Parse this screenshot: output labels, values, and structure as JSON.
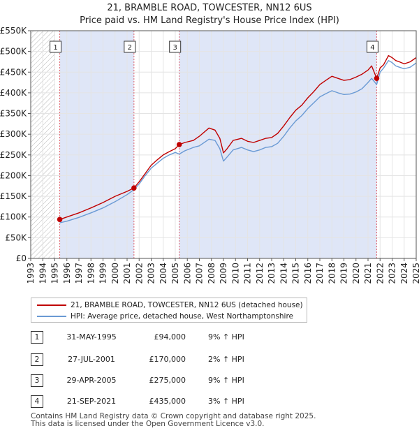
{
  "title_line1": "21, BRAMBLE ROAD, TOWCESTER, NN12 6US",
  "title_line2": "Price paid vs. HM Land Registry's House Price Index (HPI)",
  "chart_data": {
    "type": "line",
    "title": "21, BRAMBLE ROAD, TOWCESTER, NN12 6US — Price paid vs. HM Land Registry's House Price Index (HPI)",
    "xlabel": "",
    "ylabel": "",
    "xlim": [
      1993,
      2025
    ],
    "ylim": [
      0,
      550000
    ],
    "x_ticks": [
      "1993",
      "1994",
      "1995",
      "1996",
      "1997",
      "1998",
      "1999",
      "2000",
      "2001",
      "2002",
      "2003",
      "2004",
      "2005",
      "2006",
      "2007",
      "2008",
      "2009",
      "2010",
      "2011",
      "2012",
      "2013",
      "2014",
      "2015",
      "2016",
      "2017",
      "2018",
      "2019",
      "2020",
      "2021",
      "2022",
      "2023",
      "2024",
      "2025"
    ],
    "y_ticks": [
      0,
      50000,
      100000,
      150000,
      200000,
      250000,
      300000,
      350000,
      400000,
      450000,
      500000,
      550000
    ],
    "y_tick_labels": [
      "£0",
      "£50K",
      "£100K",
      "£150K",
      "£200K",
      "£250K",
      "£300K",
      "£350K",
      "£400K",
      "£450K",
      "£500K",
      "£550K"
    ],
    "colors": {
      "property": "#c00000",
      "hpi": "#6a9ad4",
      "shade": "#dfe6f7",
      "marker_line": "#e0606a"
    },
    "hatch_until": 1995.0,
    "shaded_regions": [
      [
        1995.41,
        2001.57
      ],
      [
        2005.33,
        2021.72
      ]
    ],
    "series": [
      {
        "name": "21, BRAMBLE ROAD, TOWCESTER, NN12 6US (detached house)",
        "color": "#c00000",
        "x": [
          1995.41,
          1996.0,
          1997.0,
          1998.0,
          1999.0,
          2000.0,
          2001.0,
          2001.57,
          2002.0,
          2002.5,
          2003.0,
          2003.5,
          2004.0,
          2004.5,
          2005.0,
          2005.33,
          2005.8,
          2006.5,
          2007.0,
          2007.8,
          2008.3,
          2008.7,
          2009.0,
          2009.3,
          2009.8,
          2010.5,
          2011.0,
          2011.5,
          2012.0,
          2012.5,
          2013.0,
          2013.5,
          2014.0,
          2014.5,
          2015.0,
          2015.5,
          2016.0,
          2016.5,
          2017.0,
          2017.5,
          2018.0,
          2018.5,
          2019.0,
          2019.5,
          2020.0,
          2020.5,
          2021.0,
          2021.3,
          2021.72,
          2022.0,
          2022.3,
          2022.7,
          2023.0,
          2023.3,
          2023.6,
          2024.0,
          2024.5,
          2025.0
        ],
        "y": [
          94000,
          100000,
          110000,
          122000,
          135000,
          150000,
          162000,
          170000,
          185000,
          205000,
          225000,
          238000,
          250000,
          258000,
          265000,
          275000,
          280000,
          285000,
          295000,
          315000,
          310000,
          290000,
          255000,
          265000,
          285000,
          290000,
          283000,
          280000,
          285000,
          290000,
          292000,
          302000,
          320000,
          340000,
          358000,
          370000,
          388000,
          403000,
          420000,
          430000,
          440000,
          435000,
          430000,
          432000,
          438000,
          445000,
          455000,
          465000,
          435000,
          460000,
          468000,
          490000,
          485000,
          478000,
          475000,
          470000,
          475000,
          485000
        ]
      },
      {
        "name": "HPI: Average price, detached house, West Northamptonshire",
        "color": "#6a9ad4",
        "x": [
          1995.41,
          1996.0,
          1997.0,
          1998.0,
          1999.0,
          2000.0,
          2001.0,
          2001.57,
          2002.0,
          2002.5,
          2003.0,
          2003.5,
          2004.0,
          2004.5,
          2005.0,
          2005.33,
          2005.8,
          2006.5,
          2007.0,
          2007.8,
          2008.3,
          2008.7,
          2009.0,
          2009.3,
          2009.8,
          2010.5,
          2011.0,
          2011.5,
          2012.0,
          2012.5,
          2013.0,
          2013.5,
          2014.0,
          2014.5,
          2015.0,
          2015.5,
          2016.0,
          2016.5,
          2017.0,
          2017.5,
          2018.0,
          2018.5,
          2019.0,
          2019.5,
          2020.0,
          2020.5,
          2021.0,
          2021.3,
          2021.72,
          2022.0,
          2022.3,
          2022.7,
          2023.0,
          2023.3,
          2023.6,
          2024.0,
          2024.5,
          2025.0
        ],
        "y": [
          86000,
          90000,
          99000,
          110000,
          122000,
          137000,
          154000,
          166000,
          180000,
          200000,
          218000,
          230000,
          242000,
          250000,
          256000,
          252000,
          260000,
          268000,
          272000,
          288000,
          285000,
          265000,
          235000,
          245000,
          262000,
          268000,
          262000,
          258000,
          262000,
          268000,
          270000,
          278000,
          295000,
          315000,
          332000,
          345000,
          362000,
          376000,
          390000,
          398000,
          405000,
          400000,
          396000,
          397000,
          402000,
          410000,
          425000,
          435000,
          420000,
          450000,
          460000,
          478000,
          473000,
          465000,
          462000,
          458000,
          462000,
          472000
        ]
      }
    ],
    "sales": [
      {
        "n": "1",
        "x": 1995.41,
        "y": 94000
      },
      {
        "n": "2",
        "x": 2001.57,
        "y": 170000
      },
      {
        "n": "3",
        "x": 2005.33,
        "y": 275000
      },
      {
        "n": "4",
        "x": 2021.72,
        "y": 435000
      }
    ]
  },
  "legend": {
    "property_label": "21, BRAMBLE ROAD, TOWCESTER, NN12 6US (detached house)",
    "hpi_label": "HPI: Average price, detached house, West Northamptonshire"
  },
  "sales_table": [
    {
      "n": "1",
      "date": "31-MAY-1995",
      "price": "£94,000",
      "hpi": "9% ↑ HPI"
    },
    {
      "n": "2",
      "date": "27-JUL-2001",
      "price": "£170,000",
      "hpi": "2% ↑ HPI"
    },
    {
      "n": "3",
      "date": "29-APR-2005",
      "price": "£275,000",
      "hpi": "9% ↑ HPI"
    },
    {
      "n": "4",
      "date": "21-SEP-2021",
      "price": "£435,000",
      "hpi": "3% ↑ HPI"
    }
  ],
  "footer_line1": "Contains HM Land Registry data © Crown copyright and database right 2025.",
  "footer_line2": "This data is licensed under the Open Government Licence v3.0."
}
